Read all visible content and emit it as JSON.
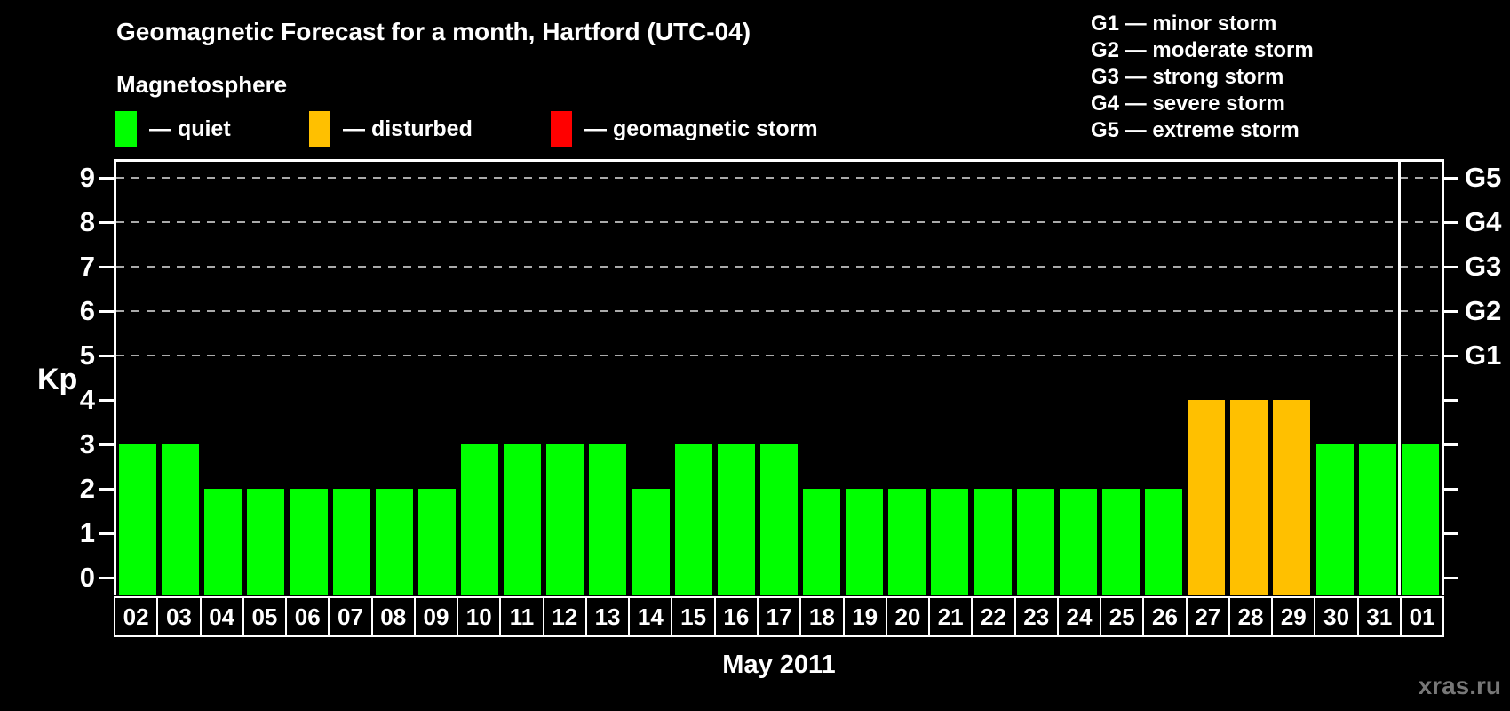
{
  "title": "Geomagnetic Forecast for a month, Hartford (UTC-04)",
  "subtitle": "Magnetosphere",
  "watermark": "xras.ru",
  "status_legend": [
    {
      "name": "quiet",
      "label": "— quiet",
      "color": "#00ff00"
    },
    {
      "name": "disturbed",
      "label": "— disturbed",
      "color": "#ffc000"
    },
    {
      "name": "storm",
      "label": "— geomagnetic storm",
      "color": "#ff0000"
    }
  ],
  "g_scale_legend": [
    "G1 — minor storm",
    "G2 — moderate storm",
    "G3 — strong storm",
    "G4 — severe storm",
    "G5 — extreme storm"
  ],
  "chart_data": {
    "type": "bar",
    "title": "Geomagnetic Forecast for a month, Hartford (UTC-04)",
    "xlabel": "May 2011",
    "ylabel": "Kp",
    "ylim": [
      0,
      9
    ],
    "grid": "dashed horizontal lines at Kp 5-9 only",
    "legend_position": "top",
    "categories": [
      "02",
      "03",
      "04",
      "05",
      "06",
      "07",
      "08",
      "09",
      "10",
      "11",
      "12",
      "13",
      "14",
      "15",
      "16",
      "17",
      "18",
      "19",
      "20",
      "21",
      "22",
      "23",
      "24",
      "25",
      "26",
      "27",
      "28",
      "29",
      "30",
      "31",
      "01"
    ],
    "values": [
      3,
      3,
      2,
      2,
      2,
      2,
      2,
      2,
      3,
      3,
      3,
      3,
      2,
      3,
      3,
      3,
      2,
      2,
      2,
      2,
      2,
      2,
      2,
      2,
      2,
      4,
      4,
      4,
      3,
      3,
      3
    ],
    "y_ticks": [
      0,
      1,
      2,
      3,
      4,
      5,
      6,
      7,
      8,
      9
    ],
    "right_axis_labels": [
      {
        "label": "G1",
        "kp": 5
      },
      {
        "label": "G2",
        "kp": 6
      },
      {
        "label": "G3",
        "kp": 7
      },
      {
        "label": "G4",
        "kp": 8
      },
      {
        "label": "G5",
        "kp": 9
      }
    ],
    "color_thresholds": {
      "disturbed_min": 4,
      "storm_min": 5
    },
    "colors": {
      "quiet": "#00ff00",
      "disturbed": "#ffc000",
      "storm": "#ff0000"
    },
    "month_boundary_between": [
      "31",
      "01"
    ]
  }
}
